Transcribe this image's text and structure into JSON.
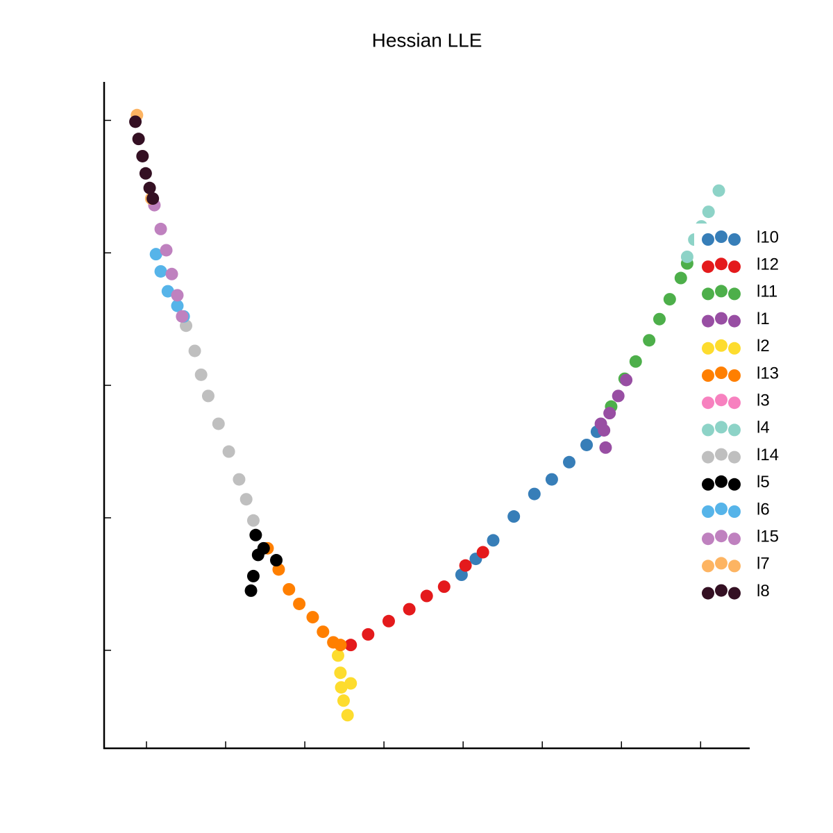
{
  "chart_data": {
    "type": "scatter",
    "title": "Hessian LLE",
    "xlim": [
      -0.535,
      7.62
    ],
    "ylim": [
      -0.74,
      4.28
    ],
    "xticks": [
      0,
      1,
      2,
      3,
      4,
      5,
      6,
      7
    ],
    "yticks": [
      0,
      1,
      2,
      3,
      4
    ],
    "legend": "right",
    "series": [
      {
        "name": "l10",
        "color": "#377eb8",
        "x": [
          3.98,
          4.16,
          4.38,
          4.64,
          4.9,
          5.12,
          5.34,
          5.56,
          5.69
        ],
        "values": [
          0.57,
          0.69,
          0.83,
          1.01,
          1.18,
          1.29,
          1.42,
          1.55,
          1.65
        ]
      },
      {
        "name": "l12",
        "color": "#e41a1c",
        "x": [
          2.58,
          2.8,
          3.06,
          3.32,
          3.54,
          3.76,
          4.03,
          4.25
        ],
        "values": [
          0.04,
          0.12,
          0.22,
          0.31,
          0.41,
          0.48,
          0.64,
          0.74
        ]
      },
      {
        "name": "l11",
        "color": "#4daf4a",
        "x": [
          5.87,
          6.04,
          6.18,
          6.35,
          6.48,
          6.61,
          6.75,
          6.83
        ],
        "values": [
          1.84,
          2.05,
          2.18,
          2.34,
          2.5,
          2.65,
          2.81,
          2.92
        ]
      },
      {
        "name": "l1",
        "color": "#984ea3",
        "x": [
          5.8,
          5.78,
          5.85,
          5.96,
          6.06,
          5.74
        ],
        "values": [
          1.53,
          1.66,
          1.79,
          1.92,
          2.04,
          1.71
        ]
      },
      {
        "name": "l2",
        "color": "#fddc2e",
        "x": [
          2.42,
          2.45,
          2.46,
          2.49,
          2.54,
          2.58
        ],
        "values": [
          -0.04,
          -0.17,
          -0.28,
          -0.38,
          -0.49,
          -0.25
        ]
      },
      {
        "name": "l13",
        "color": "#ff7f00",
        "x": [
          1.53,
          1.67,
          1.8,
          1.93,
          2.1,
          2.23,
          2.36,
          2.45
        ],
        "values": [
          0.77,
          0.61,
          0.46,
          0.35,
          0.25,
          0.14,
          0.06,
          0.04
        ]
      },
      {
        "name": "l3",
        "color": "#f781bf",
        "x": [],
        "values": []
      },
      {
        "name": "l4",
        "color": "#8dd3c7",
        "x": [
          6.83,
          6.92,
          7.01,
          7.1,
          7.23
        ],
        "values": [
          2.97,
          3.1,
          3.2,
          3.31,
          3.47
        ]
      },
      {
        "name": "l14",
        "color": "#bfbfbf",
        "x": [
          0.5,
          0.61,
          0.69,
          0.78,
          0.91,
          1.04,
          1.17,
          1.26,
          1.35
        ],
        "values": [
          2.45,
          2.26,
          2.08,
          1.92,
          1.71,
          1.5,
          1.29,
          1.14,
          0.98
        ]
      },
      {
        "name": "l5",
        "color": "#000000",
        "x": [
          1.38,
          1.41,
          1.35,
          1.32,
          1.48,
          1.64
        ],
        "values": [
          0.87,
          0.72,
          0.56,
          0.45,
          0.77,
          0.68
        ]
      },
      {
        "name": "l6",
        "color": "#56b4e9",
        "x": [
          0.12,
          0.18,
          0.27,
          0.39,
          0.47
        ],
        "values": [
          2.99,
          2.86,
          2.71,
          2.6,
          2.52
        ]
      },
      {
        "name": "l15",
        "color": "#bf81bf",
        "x": [
          0.1,
          0.18,
          0.25,
          0.32,
          0.39,
          0.45
        ],
        "values": [
          3.36,
          3.18,
          3.02,
          2.84,
          2.68,
          2.52
        ]
      },
      {
        "name": "l7",
        "color": "#fdb462",
        "x": [
          -0.12,
          0.06
        ],
        "values": [
          4.04,
          3.41
        ]
      },
      {
        "name": "l8",
        "color": "#341023",
        "x": [
          -0.14,
          -0.1,
          -0.05,
          -0.01,
          0.04,
          0.08
        ],
        "values": [
          3.99,
          3.86,
          3.73,
          3.6,
          3.49,
          3.41
        ]
      }
    ]
  }
}
